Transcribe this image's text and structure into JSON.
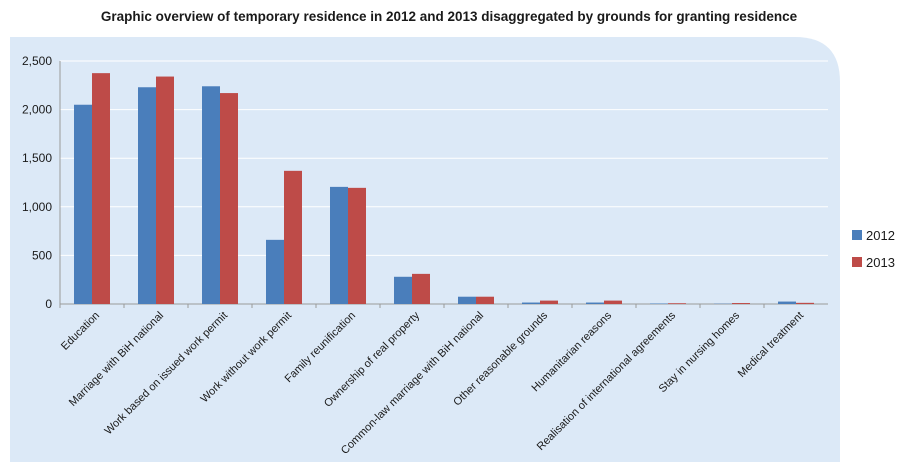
{
  "chart_data": {
    "type": "bar",
    "title": "Graphic overview of temporary residence in 2012 and 2013 disaggregated by grounds for granting residence",
    "categories": [
      "Education",
      "Marriage with BiH national",
      "Work based on issued work permit",
      "Work without work permit",
      "Family reunification",
      "Ownership of real property",
      "Common-law marriage with BiH national",
      "Other reasonable grounds",
      "Humanitarian reasons",
      "Realisation of international agreements",
      "Stay in nursing homes",
      "Medical treatment"
    ],
    "series": [
      {
        "name": "2012",
        "color": "#4a7ebb",
        "values": [
          2050,
          2230,
          2240,
          660,
          1205,
          280,
          75,
          15,
          15,
          5,
          3,
          25
        ]
      },
      {
        "name": "2013",
        "color": "#be4b48",
        "values": [
          2375,
          2340,
          2170,
          1370,
          1195,
          310,
          75,
          35,
          35,
          8,
          10,
          12
        ]
      }
    ],
    "ylim": [
      0,
      2500
    ],
    "yticks": [
      0,
      500,
      1000,
      1500,
      2000,
      2500
    ],
    "ytick_labels": [
      "0",
      "500",
      "1,000",
      "1,500",
      "2,000",
      "2,500"
    ],
    "grid": true,
    "legend_position": "right",
    "plot_background": "#dce9f7"
  }
}
